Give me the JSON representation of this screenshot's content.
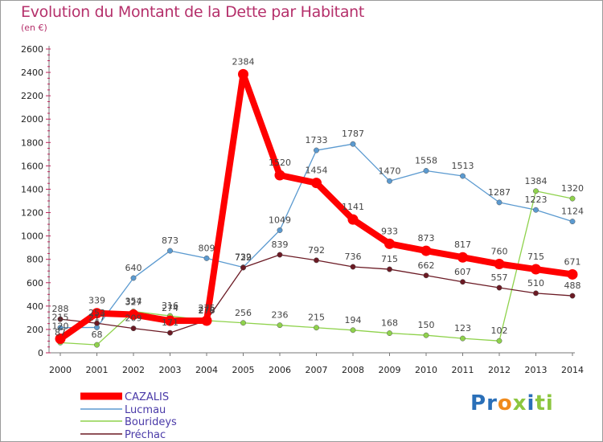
{
  "chart_data": {
    "type": "line",
    "title": "Evolution du Montant de la Dette par Habitant",
    "subtitle": "(en €)",
    "x": [
      "2000",
      "2001",
      "2002",
      "2003",
      "2004",
      "2005",
      "2006",
      "2007",
      "2008",
      "2009",
      "2010",
      "2011",
      "2012",
      "2013",
      "2014"
    ],
    "yticks": [
      0,
      200,
      400,
      600,
      800,
      1000,
      1200,
      1400,
      1600,
      1800,
      2000,
      2200,
      2400,
      2600
    ],
    "ylim": [
      0,
      2600
    ],
    "grid": false,
    "legend_position": "bottom-left",
    "series": [
      {
        "name": "CAZALIS",
        "color": "#ff0000",
        "values": [
          120,
          339,
          327,
          274,
          275,
          2384,
          1520,
          1454,
          1141,
          933,
          873,
          817,
          760,
          715,
          671
        ],
        "labels": [
          "120",
          "339",
          "327",
          "274",
          "275",
          "2384",
          "1520",
          "1454",
          "1141",
          "933",
          "873",
          "817",
          "760",
          "715",
          "671"
        ]
      },
      {
        "name": "Lucmau",
        "color": "#5b9ad0",
        "values": [
          215,
          217,
          640,
          873,
          809,
          732,
          1049,
          1733,
          1787,
          1470,
          1558,
          1513,
          1287,
          1223,
          1124
        ],
        "labels": [
          "215",
          "217",
          "640",
          "873",
          "809",
          "732",
          "1049",
          "1733",
          "1787",
          "1470",
          "1558",
          "1513",
          "1287",
          "1223",
          "1124"
        ]
      },
      {
        "name": "Bourideys",
        "color": "#8fd24c",
        "values": [
          87,
          68,
          354,
          316,
          276,
          256,
          236,
          215,
          194,
          168,
          150,
          123,
          102,
          1384,
          1320
        ],
        "labels": [
          "87",
          "68",
          "354",
          "316",
          "276",
          "256",
          "236",
          "215",
          "194",
          "168",
          "150",
          "123",
          "102",
          "1384",
          "1320"
        ]
      },
      {
        "name": "Préchac",
        "color": "#6b1a24",
        "values": [
          288,
          253,
          209,
          171,
          278,
          729,
          839,
          792,
          736,
          715,
          662,
          607,
          557,
          510,
          488
        ],
        "labels": [
          "288",
          "253",
          "209",
          "171",
          "278",
          "729",
          "839",
          "792",
          "736",
          "715",
          "662",
          "607",
          "557",
          "510",
          "488"
        ]
      }
    ]
  },
  "logo": {
    "letters": [
      "P",
      "r",
      "o",
      "x",
      "i",
      "t",
      "i"
    ],
    "colors": [
      "#2a6fb8",
      "#2a6fb8",
      "#f08a1c",
      "#8cc63f",
      "#2a6fb8",
      "#8cc63f",
      "#8cc63f"
    ]
  }
}
